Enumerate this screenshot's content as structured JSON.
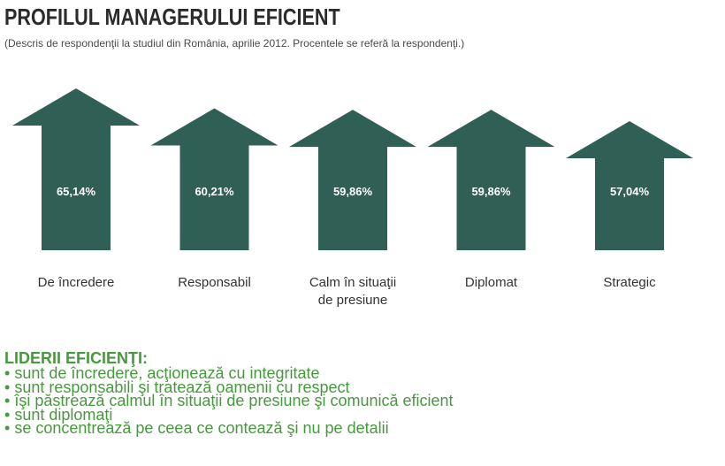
{
  "chart_data": {
    "type": "bar",
    "title": "PROFILUL MANAGERULUI EFICIENT",
    "subtitle": "(Descris de respondenţii la studiul din România, aprilie 2012. Procentele se referă la respondenţi.)",
    "categories": [
      "De încredere",
      "Responsabil",
      "Calm în situaţii\nde presiune",
      "Diplomat",
      "Strategic"
    ],
    "values": [
      65.14,
      60.21,
      59.86,
      59.86,
      57.04
    ],
    "value_labels": [
      "65,14%",
      "60,21%",
      "59,86%",
      "59,86%",
      "57,04%"
    ],
    "xlabel": "",
    "ylabel": "",
    "grid": false
  },
  "summary": {
    "heading": "LIDERII EFICIENŢI:",
    "items": [
      "sunt de încredere, acţionează cu integritate",
      "sunt responsabili şi tratează oamenii cu respect",
      "îşi păstrează calmul în situaţii de presiune şi comunică eficient",
      "sunt diplomaţi",
      "se concentrează pe ceea ce contează şi nu pe detalii"
    ]
  },
  "colors": {
    "title": "#2b2b2b",
    "subtitle": "#4a4a4a",
    "arrow": "#2f5f55",
    "value_label": "#ffffff",
    "category_label": "#333333",
    "summary_green": "#46993c"
  }
}
